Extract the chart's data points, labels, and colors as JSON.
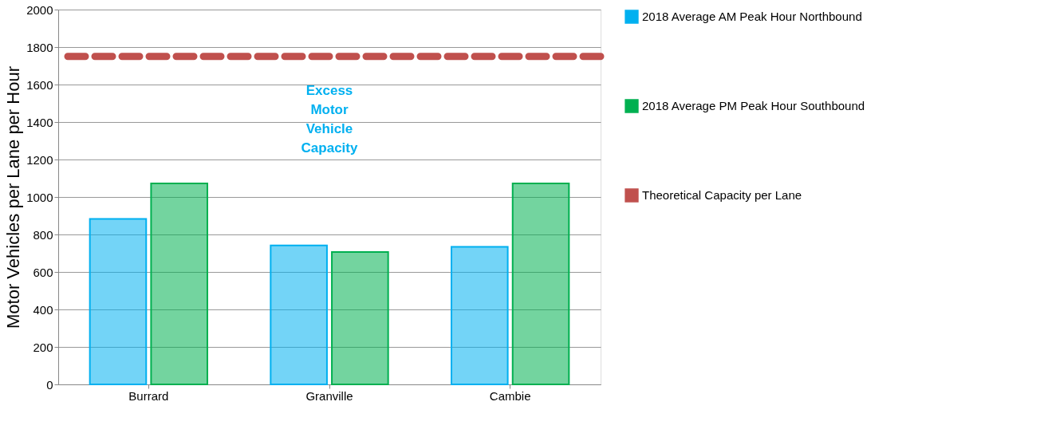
{
  "chart_data": {
    "type": "bar",
    "ylabel": "Motor Vehicles per Lane per Hour",
    "categories": [
      "Burrard",
      "Granville",
      "Cambie"
    ],
    "series": [
      {
        "name": "2018 Average AM Peak Hour Northbound",
        "color": "#00b0f0",
        "values": [
          883,
          742,
          734
        ]
      },
      {
        "name": "2018 Average PM Peak Hour Southbound",
        "color": "#00b050",
        "values": [
          1072,
          706,
          1072
        ]
      }
    ],
    "ref_lines": [
      {
        "axis": "y",
        "value": 1750,
        "label": "Theoretical Capacity per Lane",
        "color": "#c0504d",
        "line_style": "dashed"
      }
    ],
    "annotations": [
      "Excess Motor Vehicle Capacity"
    ],
    "ylim": [
      0,
      2000
    ],
    "yticks": [
      0,
      200,
      400,
      600,
      800,
      1000,
      1200,
      1400,
      1600,
      1800,
      2000
    ],
    "grid": "y",
    "legend": "right"
  }
}
